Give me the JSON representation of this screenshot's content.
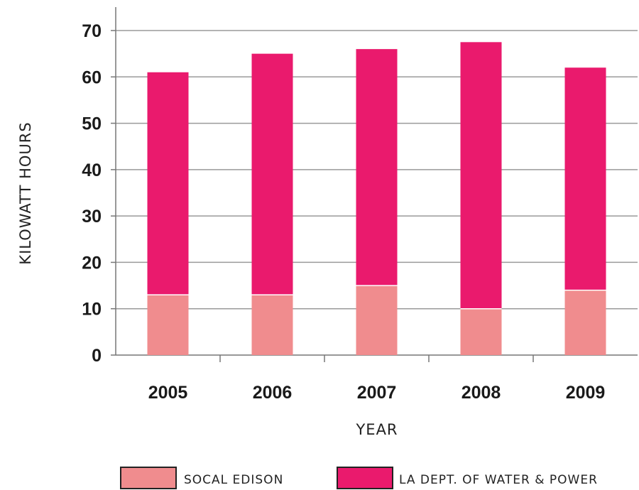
{
  "chart_data": {
    "type": "bar",
    "stacked": true,
    "categories": [
      "2005",
      "2006",
      "2007",
      "2008",
      "2009"
    ],
    "series": [
      {
        "name": "SOCAL EDISON",
        "color": "#f08c8e",
        "values": [
          13,
          13,
          15,
          10,
          14
        ]
      },
      {
        "name": "LA DEPT. OF WATER & POWER",
        "color": "#ea1a6d",
        "values": [
          48,
          52,
          51,
          57.5,
          48
        ]
      }
    ],
    "totals": [
      61,
      65,
      66,
      67.5,
      62
    ],
    "xlabel": "YEAR",
    "ylabel": "KILOWATT HOURS",
    "ylim": [
      0,
      70
    ],
    "yticks": [
      "0",
      "10",
      "20",
      "30",
      "40",
      "50",
      "60",
      "70"
    ],
    "grid": true,
    "legend_position": "bottom"
  }
}
